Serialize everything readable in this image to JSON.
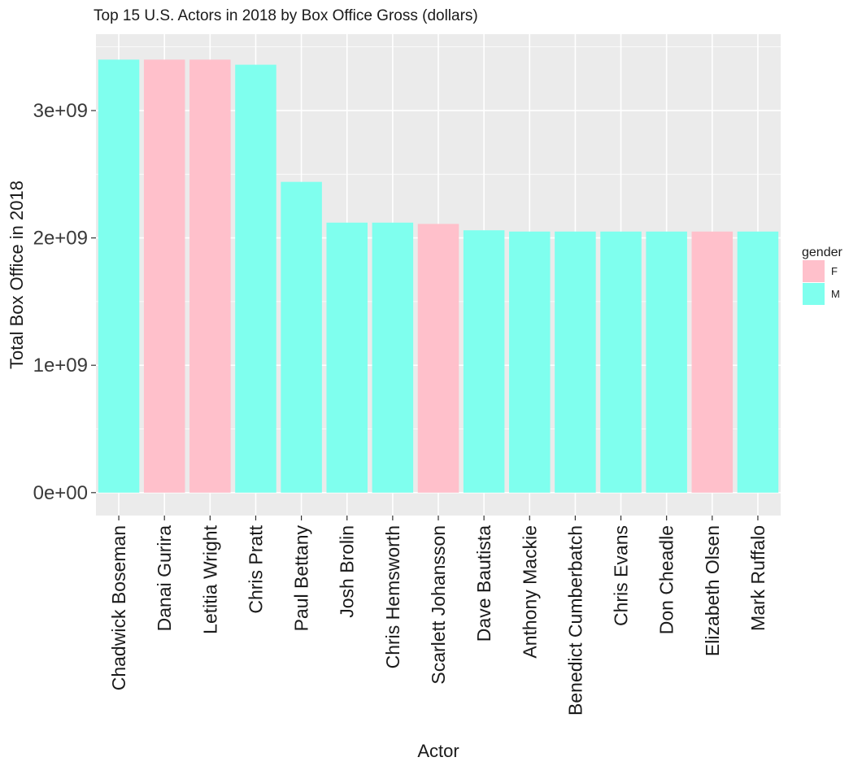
{
  "chart_data": {
    "type": "bar",
    "title": "Top 15 U.S. Actors in 2018 by Box Office Gross (dollars)",
    "xlabel": "Actor",
    "ylabel": "Total Box Office in 2018",
    "categories": [
      "Chadwick Boseman",
      "Danai Gurira",
      "Letitia Wright",
      "Chris Pratt",
      "Paul Bettany",
      "Josh Brolin",
      "Chris Hemsworth",
      "Scarlett Johansson",
      "Dave Bautista",
      "Anthony Mackie",
      "Benedict Cumberbatch",
      "Chris Evans",
      "Don Cheadle",
      "Elizabeth Olsen",
      "Mark Ruffalo"
    ],
    "values": [
      3400000000,
      3400000000,
      3400000000,
      3360000000,
      2440000000,
      2120000000,
      2120000000,
      2110000000,
      2060000000,
      2050000000,
      2050000000,
      2050000000,
      2050000000,
      2050000000,
      2050000000
    ],
    "gender": [
      "M",
      "F",
      "F",
      "M",
      "M",
      "M",
      "M",
      "F",
      "M",
      "M",
      "M",
      "M",
      "M",
      "F",
      "M"
    ],
    "ylim": [
      -180000000,
      3600000000
    ],
    "yticks": [
      0,
      1000000000,
      2000000000,
      3000000000
    ],
    "ytick_labels": [
      "0e+00",
      "1e+09",
      "2e+09",
      "3e+09"
    ],
    "grid": true,
    "legend": {
      "title": "gender",
      "placement": "right",
      "entries": [
        {
          "key": "F",
          "label": "F",
          "color": "#ffc0cb"
        },
        {
          "key": "M",
          "label": "M",
          "color": "#7fffee"
        }
      ]
    },
    "colors": {
      "panel": "#ebebeb",
      "grid": "#ffffff",
      "tick": "#333333"
    }
  }
}
